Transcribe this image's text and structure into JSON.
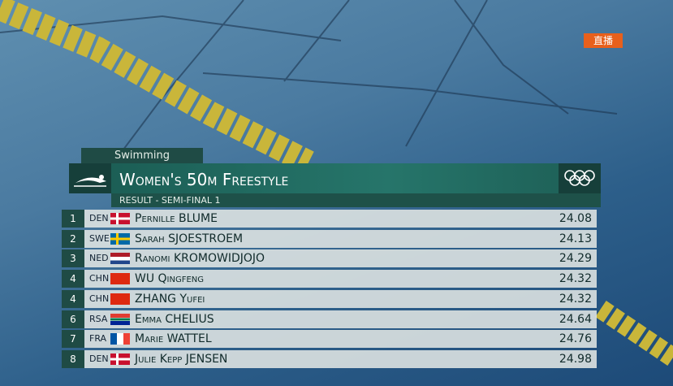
{
  "live_badge": "直播",
  "header": {
    "sport": "Swimming",
    "title": "Women's 50m Freestyle",
    "subtitle": "RESULT - SEMI-FINAL 1"
  },
  "table": {
    "rows": [
      [
        1,
        "DEN",
        "Pernille BLUME",
        24.08
      ],
      [
        2,
        "SWE",
        "Sarah SJOESTROEM",
        24.13
      ],
      [
        3,
        "NED",
        "Ranomi KROMOWIDJOJO",
        24.29
      ],
      [
        4,
        "CHN",
        "WU Qingfeng",
        24.32
      ],
      [
        4,
        "CHN",
        "ZHANG Yufei",
        24.32
      ],
      [
        6,
        "RSA",
        "Emma CHELIUS",
        24.64
      ],
      [
        7,
        "FRA",
        "Marie WATTEL",
        24.76
      ],
      [
        8,
        "DEN",
        "Julie Kepp JENSEN",
        24.98
      ]
    ]
  }
}
